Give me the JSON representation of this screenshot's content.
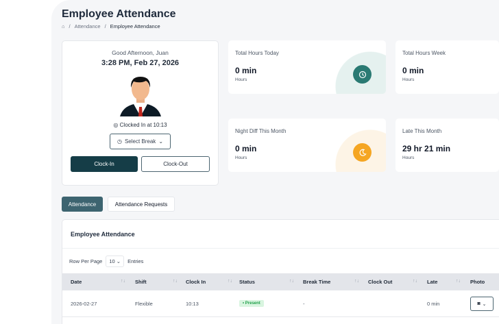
{
  "page": {
    "title": "Employee Attendance",
    "breadcrumb": [
      "Attendance",
      "Employee Attendance"
    ]
  },
  "profile": {
    "greeting": "Good Afternoon, Juan",
    "datetime": "3:28 PM, Feb 27, 2026",
    "clocked_in": "Clocked In at 10:13",
    "select_break": "Select Break",
    "clock_in": "Clock-In",
    "clock_out": "Clock-Out"
  },
  "stats": [
    {
      "label": "Total Hours Today",
      "value": "0 min",
      "unit": "Hours",
      "icon": "clock-icon",
      "color": "#2a7a73"
    },
    {
      "label": "Total Hours Week",
      "value": "0 min",
      "unit": "Hours"
    },
    {
      "label": "Night Diff This Month",
      "value": "0 min",
      "unit": "Hours",
      "icon": "moon-icon",
      "color": "#f5a623"
    },
    {
      "label": "Late This Month",
      "value": "29 hr 21 min",
      "unit": "Hours"
    }
  ],
  "tabs": [
    "Attendance",
    "Attendance Requests"
  ],
  "table": {
    "title": "Employee Attendance",
    "rows_per_page_label": "Row Per Page",
    "rows_per_page": "10",
    "entries_label": "Entries",
    "columns": [
      "Date",
      "Shift",
      "Clock In",
      "Status",
      "Break Time",
      "Clock Out",
      "Late",
      "Photo"
    ],
    "rows": [
      {
        "date": "2026-02-27",
        "shift": "Flexible",
        "clock_in": "10:13",
        "status": "Present",
        "break_time": "-",
        "clock_out": "",
        "late": "0 min"
      }
    ]
  }
}
